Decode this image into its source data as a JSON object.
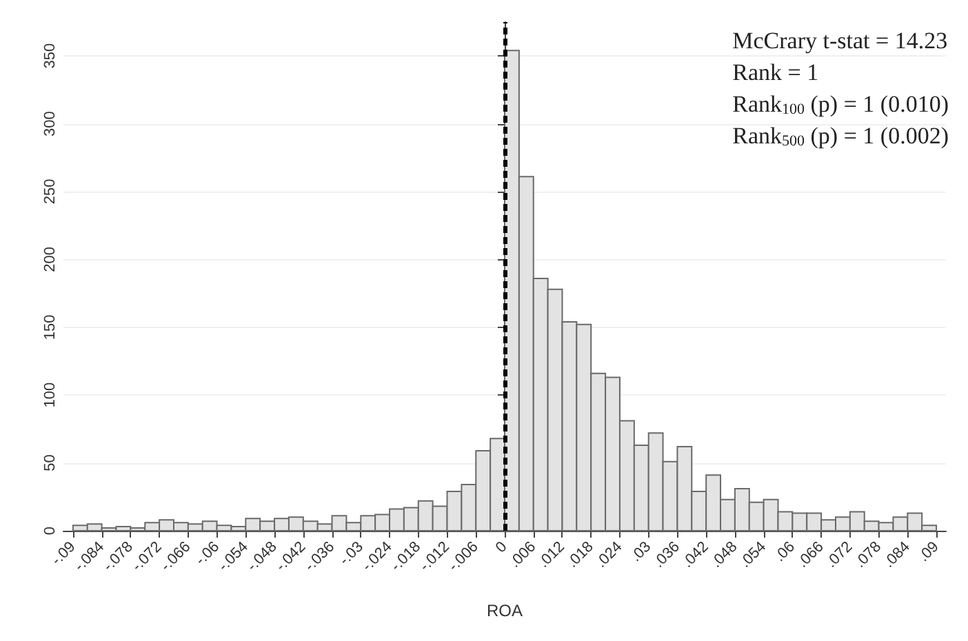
{
  "chart_data": {
    "type": "histogram",
    "xlabel": "ROA",
    "color": "#e3e3e3",
    "bins": [
      -0.09,
      -0.087,
      -0.084,
      -0.081,
      -0.078,
      -0.075,
      -0.072,
      -0.069,
      -0.066,
      -0.063,
      -0.06,
      -0.057,
      -0.054,
      -0.051,
      -0.048,
      -0.045,
      -0.042,
      -0.039,
      -0.036,
      -0.033,
      -0.03,
      -0.027,
      -0.024,
      -0.021,
      -0.018,
      -0.015,
      -0.012,
      -0.009,
      -0.006,
      -0.003,
      0,
      0.003,
      0.006,
      0.009,
      0.012,
      0.015,
      0.018,
      0.021,
      0.024,
      0.027,
      0.03,
      0.033,
      0.036,
      0.039,
      0.042,
      0.045,
      0.048,
      0.051,
      0.054,
      0.057,
      0.06,
      0.063,
      0.066,
      0.069,
      0.072,
      0.075,
      0.078,
      0.081,
      0.084,
      0.087,
      0.09
    ],
    "values": [
      4,
      5,
      2,
      3,
      2,
      6,
      8,
      6,
      5,
      7,
      4,
      3,
      9,
      7,
      9,
      10,
      7,
      5,
      11,
      6,
      11,
      12,
      16,
      17,
      22,
      18,
      29,
      34,
      59,
      68,
      354,
      261,
      186,
      178,
      154,
      152,
      116,
      113,
      81,
      63,
      72,
      51,
      62,
      29,
      41,
      23,
      31,
      21,
      23,
      14,
      13,
      13,
      8,
      10,
      14,
      7,
      6,
      10,
      13,
      4
    ],
    "xlim": [
      -0.092,
      0.092
    ],
    "xticks": [
      {
        "value": -0.09,
        "label": "-.09"
      },
      {
        "value": -0.084,
        "label": "-.084"
      },
      {
        "value": -0.078,
        "label": "-.078"
      },
      {
        "value": -0.072,
        "label": "-.072"
      },
      {
        "value": -0.066,
        "label": "-.066"
      },
      {
        "value": -0.06,
        "label": "-.06"
      },
      {
        "value": -0.054,
        "label": "-.054"
      },
      {
        "value": -0.048,
        "label": "-.048"
      },
      {
        "value": -0.042,
        "label": "-.042"
      },
      {
        "value": -0.036,
        "label": "-.036"
      },
      {
        "value": -0.03,
        "label": "-.03"
      },
      {
        "value": -0.024,
        "label": "-.024"
      },
      {
        "value": -0.018,
        "label": "-.018"
      },
      {
        "value": -0.012,
        "label": "-.012"
      },
      {
        "value": -0.006,
        "label": "-.006"
      },
      {
        "value": 0,
        "label": "0"
      },
      {
        "value": 0.006,
        "label": ".006"
      },
      {
        "value": 0.012,
        "label": ".012"
      },
      {
        "value": 0.018,
        "label": ".018"
      },
      {
        "value": 0.024,
        "label": ".024"
      },
      {
        "value": 0.03,
        "label": ".03"
      },
      {
        "value": 0.036,
        "label": ".036"
      },
      {
        "value": 0.042,
        "label": ".042"
      },
      {
        "value": 0.048,
        "label": ".048"
      },
      {
        "value": 0.054,
        "label": ".054"
      },
      {
        "value": 0.06,
        "label": ".06"
      },
      {
        "value": 0.066,
        "label": ".066"
      },
      {
        "value": 0.072,
        "label": ".072"
      },
      {
        "value": 0.078,
        "label": ".078"
      },
      {
        "value": 0.084,
        "label": ".084"
      },
      {
        "value": 0.09,
        "label": ".09"
      }
    ],
    "ylim": [
      0,
      375
    ],
    "yticks": [
      0,
      50,
      100,
      150,
      200,
      250,
      300,
      350
    ],
    "grid": "y",
    "ref_lines": [
      {
        "axis": "x",
        "value": 0,
        "color": "#000000",
        "line_style": "dashed"
      }
    ],
    "annotations": [
      "McCrary t-stat = 14.23",
      "Rank = 1",
      "Rank$_{100}$ (p) = 1 (0.010)",
      "Rank$_{500}$ (p) = 1 (0.002)"
    ]
  }
}
